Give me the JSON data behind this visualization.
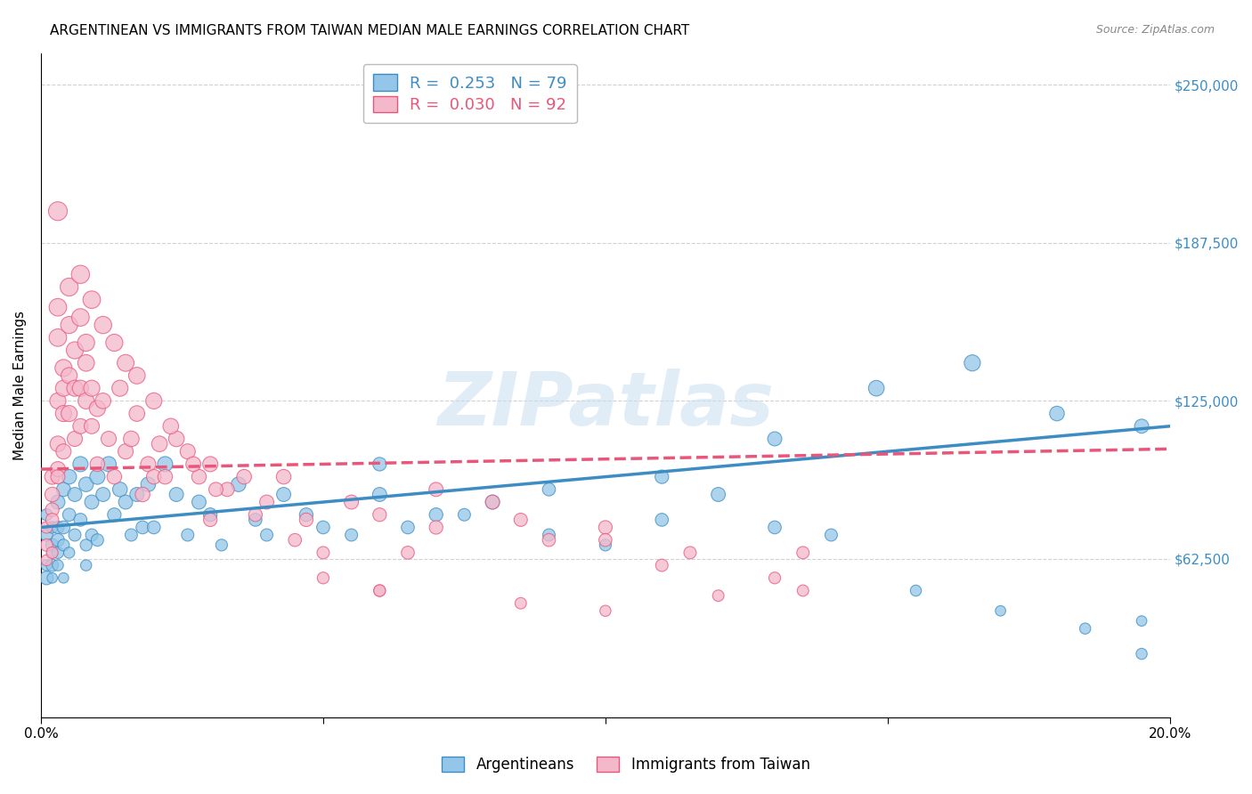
{
  "title": "ARGENTINEAN VS IMMIGRANTS FROM TAIWAN MEDIAN MALE EARNINGS CORRELATION CHART",
  "source": "Source: ZipAtlas.com",
  "ylabel": "Median Male Earnings",
  "xlim": [
    0.0,
    0.2
  ],
  "ylim": [
    0,
    262500
  ],
  "yticks": [
    0,
    62500,
    125000,
    187500,
    250000
  ],
  "ytick_labels_right": [
    "",
    "$62,500",
    "$125,000",
    "$187,500",
    "$250,000"
  ],
  "xticks": [
    0.0,
    0.05,
    0.1,
    0.15,
    0.2
  ],
  "xtick_labels": [
    "0.0%",
    "",
    "",
    "",
    "20.0%"
  ],
  "color_blue": "#93c6e8",
  "color_pink": "#f4b8cb",
  "line_blue": "#3d8dc4",
  "line_pink": "#e8567a",
  "watermark": "ZIPatlas",
  "series1_label": "Argentineans",
  "series2_label": "Immigrants from Taiwan",
  "blue_x": [
    0.001,
    0.001,
    0.001,
    0.001,
    0.002,
    0.002,
    0.002,
    0.002,
    0.002,
    0.003,
    0.003,
    0.003,
    0.003,
    0.003,
    0.004,
    0.004,
    0.004,
    0.004,
    0.005,
    0.005,
    0.005,
    0.006,
    0.006,
    0.007,
    0.007,
    0.008,
    0.008,
    0.008,
    0.009,
    0.009,
    0.01,
    0.01,
    0.011,
    0.012,
    0.013,
    0.014,
    0.015,
    0.016,
    0.017,
    0.018,
    0.019,
    0.02,
    0.022,
    0.024,
    0.026,
    0.028,
    0.03,
    0.032,
    0.035,
    0.038,
    0.04,
    0.043,
    0.047,
    0.05,
    0.055,
    0.06,
    0.065,
    0.07,
    0.08,
    0.09,
    0.1,
    0.11,
    0.12,
    0.13,
    0.14,
    0.155,
    0.17,
    0.185,
    0.195,
    0.06,
    0.075,
    0.09,
    0.11,
    0.13,
    0.148,
    0.165,
    0.18,
    0.195,
    0.195
  ],
  "blue_y": [
    55000,
    72000,
    80000,
    60000,
    68000,
    75000,
    60000,
    65000,
    55000,
    85000,
    70000,
    65000,
    60000,
    75000,
    90000,
    75000,
    68000,
    55000,
    95000,
    80000,
    65000,
    88000,
    72000,
    100000,
    78000,
    92000,
    68000,
    60000,
    85000,
    72000,
    95000,
    70000,
    88000,
    100000,
    80000,
    90000,
    85000,
    72000,
    88000,
    75000,
    92000,
    75000,
    100000,
    88000,
    72000,
    85000,
    80000,
    68000,
    92000,
    78000,
    72000,
    88000,
    80000,
    75000,
    72000,
    88000,
    75000,
    80000,
    85000,
    72000,
    68000,
    78000,
    88000,
    75000,
    72000,
    50000,
    42000,
    35000,
    38000,
    100000,
    80000,
    90000,
    95000,
    110000,
    130000,
    140000,
    120000,
    115000,
    25000
  ],
  "blue_size": [
    120,
    100,
    90,
    80,
    110,
    90,
    100,
    80,
    70,
    130,
    110,
    90,
    80,
    100,
    130,
    110,
    90,
    70,
    140,
    110,
    80,
    130,
    100,
    150,
    110,
    140,
    90,
    80,
    130,
    100,
    150,
    100,
    130,
    150,
    120,
    140,
    130,
    100,
    130,
    110,
    140,
    110,
    150,
    130,
    100,
    130,
    120,
    90,
    140,
    110,
    100,
    130,
    120,
    110,
    100,
    130,
    110,
    120,
    130,
    100,
    90,
    110,
    130,
    110,
    100,
    80,
    70,
    80,
    70,
    120,
    100,
    110,
    120,
    130,
    160,
    170,
    140,
    130,
    80
  ],
  "pink_x": [
    0.001,
    0.001,
    0.001,
    0.002,
    0.002,
    0.002,
    0.002,
    0.002,
    0.003,
    0.003,
    0.003,
    0.003,
    0.003,
    0.003,
    0.004,
    0.004,
    0.004,
    0.004,
    0.005,
    0.005,
    0.005,
    0.006,
    0.006,
    0.006,
    0.007,
    0.007,
    0.007,
    0.008,
    0.008,
    0.008,
    0.009,
    0.009,
    0.01,
    0.01,
    0.011,
    0.012,
    0.013,
    0.014,
    0.015,
    0.016,
    0.017,
    0.018,
    0.019,
    0.02,
    0.021,
    0.022,
    0.024,
    0.026,
    0.028,
    0.03,
    0.033,
    0.036,
    0.04,
    0.043,
    0.047,
    0.05,
    0.055,
    0.06,
    0.065,
    0.07,
    0.08,
    0.09,
    0.1,
    0.11,
    0.003,
    0.005,
    0.007,
    0.009,
    0.011,
    0.013,
    0.015,
    0.017,
    0.02,
    0.023,
    0.027,
    0.031,
    0.038,
    0.045,
    0.06,
    0.03,
    0.05,
    0.07,
    0.085,
    0.1,
    0.115,
    0.06,
    0.085,
    0.1,
    0.12,
    0.13,
    0.135,
    0.135
  ],
  "pink_y": [
    68000,
    75000,
    62000,
    82000,
    95000,
    88000,
    78000,
    65000,
    108000,
    98000,
    125000,
    150000,
    162000,
    95000,
    138000,
    120000,
    130000,
    105000,
    155000,
    120000,
    135000,
    145000,
    110000,
    130000,
    158000,
    130000,
    115000,
    148000,
    125000,
    140000,
    115000,
    130000,
    122000,
    100000,
    125000,
    110000,
    95000,
    130000,
    105000,
    110000,
    120000,
    88000,
    100000,
    95000,
    108000,
    95000,
    110000,
    105000,
    95000,
    100000,
    90000,
    95000,
    85000,
    95000,
    78000,
    55000,
    85000,
    80000,
    65000,
    75000,
    85000,
    70000,
    75000,
    60000,
    200000,
    170000,
    175000,
    165000,
    155000,
    148000,
    140000,
    135000,
    125000,
    115000,
    100000,
    90000,
    80000,
    70000,
    50000,
    78000,
    65000,
    90000,
    78000,
    70000,
    65000,
    50000,
    45000,
    42000,
    48000,
    55000,
    50000,
    65000
  ],
  "pink_size": [
    100,
    90,
    80,
    120,
    150,
    140,
    110,
    90,
    160,
    150,
    170,
    200,
    200,
    130,
    190,
    170,
    170,
    150,
    190,
    170,
    170,
    190,
    150,
    170,
    200,
    170,
    150,
    190,
    170,
    180,
    150,
    170,
    170,
    140,
    160,
    150,
    140,
    170,
    150,
    160,
    160,
    140,
    150,
    140,
    160,
    140,
    160,
    150,
    140,
    150,
    130,
    140,
    130,
    140,
    120,
    90,
    130,
    120,
    110,
    120,
    130,
    110,
    120,
    100,
    230,
    210,
    215,
    200,
    195,
    190,
    185,
    180,
    170,
    160,
    145,
    130,
    120,
    110,
    90,
    120,
    100,
    130,
    115,
    110,
    100,
    90,
    85,
    80,
    85,
    90,
    85,
    100
  ]
}
